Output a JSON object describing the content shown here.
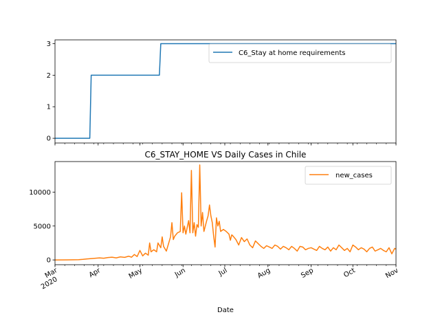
{
  "chart_data": [
    {
      "type": "line",
      "title": "",
      "xlabel": "",
      "ylabel": "",
      "x_range": [
        "2020-03-01",
        "2020-11-01"
      ],
      "ylim": [
        -0.15,
        3.12
      ],
      "yticks": [
        0,
        1,
        2,
        3
      ],
      "legend": "top-right",
      "series": [
        {
          "name": "C6_Stay at home requirements",
          "color": "#1f77b4",
          "step": true,
          "points": [
            [
              "2020-03-01",
              0
            ],
            [
              "2020-03-26",
              0
            ],
            [
              "2020-03-27",
              2
            ],
            [
              "2020-05-15",
              2
            ],
            [
              "2020-05-16",
              3
            ],
            [
              "2020-11-01",
              3
            ]
          ]
        }
      ]
    },
    {
      "type": "line",
      "title": "C6_STAY_HOME VS Daily Cases in Chile",
      "xlabel": "Date",
      "ylabel": "",
      "x_range": [
        "2020-03-01",
        "2020-11-01"
      ],
      "ylim": [
        -700,
        14500
      ],
      "yticks": [
        0,
        5000,
        10000
      ],
      "legend": "top-right",
      "xtick_labels": [
        {
          "date": "2020-03-01",
          "label": "Mar",
          "sub": "2020"
        },
        {
          "date": "2020-04-01",
          "label": "Apr"
        },
        {
          "date": "2020-05-01",
          "label": "May"
        },
        {
          "date": "2020-06-01",
          "label": "Jun"
        },
        {
          "date": "2020-07-01",
          "label": "Jul"
        },
        {
          "date": "2020-08-01",
          "label": "Aug"
        },
        {
          "date": "2020-09-01",
          "label": "Sep"
        },
        {
          "date": "2020-10-01",
          "label": "Oct"
        },
        {
          "date": "2020-11-01",
          "label": "Nov"
        }
      ],
      "series": [
        {
          "name": "new_cases",
          "color": "#ff7f0e",
          "points": [
            [
              "2020-03-01",
              0
            ],
            [
              "2020-03-10",
              10
            ],
            [
              "2020-03-18",
              40
            ],
            [
              "2020-03-21",
              80
            ],
            [
              "2020-03-24",
              150
            ],
            [
              "2020-03-27",
              200
            ],
            [
              "2020-03-30",
              250
            ],
            [
              "2020-04-02",
              300
            ],
            [
              "2020-04-05",
              250
            ],
            [
              "2020-04-08",
              350
            ],
            [
              "2020-04-11",
              400
            ],
            [
              "2020-04-14",
              300
            ],
            [
              "2020-04-17",
              450
            ],
            [
              "2020-04-20",
              380
            ],
            [
              "2020-04-23",
              550
            ],
            [
              "2020-04-25",
              400
            ],
            [
              "2020-04-27",
              800
            ],
            [
              "2020-04-29",
              500
            ],
            [
              "2020-05-01",
              1400
            ],
            [
              "2020-05-03",
              600
            ],
            [
              "2020-05-05",
              1000
            ],
            [
              "2020-05-07",
              700
            ],
            [
              "2020-05-08",
              2500
            ],
            [
              "2020-05-09",
              1200
            ],
            [
              "2020-05-11",
              1500
            ],
            [
              "2020-05-13",
              1200
            ],
            [
              "2020-05-14",
              2500
            ],
            [
              "2020-05-16",
              1800
            ],
            [
              "2020-05-17",
              3400
            ],
            [
              "2020-05-18",
              2000
            ],
            [
              "2020-05-20",
              1300
            ],
            [
              "2020-05-21",
              2000
            ],
            [
              "2020-05-23",
              3400
            ],
            [
              "2020-05-24",
              5500
            ],
            [
              "2020-05-25",
              3000
            ],
            [
              "2020-05-26",
              3500
            ],
            [
              "2020-05-28",
              4000
            ],
            [
              "2020-05-30",
              4200
            ],
            [
              "2020-05-31",
              9900
            ],
            [
              "2020-06-01",
              4000
            ],
            [
              "2020-06-02",
              5000
            ],
            [
              "2020-06-03",
              3800
            ],
            [
              "2020-06-05",
              5800
            ],
            [
              "2020-06-06",
              4000
            ],
            [
              "2020-06-07",
              13200
            ],
            [
              "2020-06-08",
              4000
            ],
            [
              "2020-06-09",
              5500
            ],
            [
              "2020-06-10",
              3500
            ],
            [
              "2020-06-11",
              5200
            ],
            [
              "2020-06-12",
              4800
            ],
            [
              "2020-06-13",
              14000
            ],
            [
              "2020-06-14",
              5000
            ],
            [
              "2020-06-15",
              7000
            ],
            [
              "2020-06-16",
              4200
            ],
            [
              "2020-06-18",
              5800
            ],
            [
              "2020-06-19",
              6500
            ],
            [
              "2020-06-20",
              8100
            ],
            [
              "2020-06-21",
              6500
            ],
            [
              "2020-06-22",
              5500
            ],
            [
              "2020-06-23",
              3500
            ],
            [
              "2020-06-24",
              1900
            ],
            [
              "2020-06-25",
              6200
            ],
            [
              "2020-06-26",
              5000
            ],
            [
              "2020-06-27",
              5700
            ],
            [
              "2020-06-28",
              4200
            ],
            [
              "2020-06-30",
              4500
            ],
            [
              "2020-07-02",
              4200
            ],
            [
              "2020-07-04",
              3800
            ],
            [
              "2020-07-05",
              2900
            ],
            [
              "2020-07-06",
              3700
            ],
            [
              "2020-07-07",
              3500
            ],
            [
              "2020-07-09",
              3000
            ],
            [
              "2020-07-11",
              2200
            ],
            [
              "2020-07-13",
              3300
            ],
            [
              "2020-07-15",
              2700
            ],
            [
              "2020-07-17",
              3100
            ],
            [
              "2020-07-19",
              2200
            ],
            [
              "2020-07-21",
              1800
            ],
            [
              "2020-07-23",
              2800
            ],
            [
              "2020-07-25",
              2400
            ],
            [
              "2020-07-27",
              2000
            ],
            [
              "2020-07-29",
              1700
            ],
            [
              "2020-07-31",
              2100
            ],
            [
              "2020-08-02",
              1900
            ],
            [
              "2020-08-04",
              1700
            ],
            [
              "2020-08-06",
              2200
            ],
            [
              "2020-08-08",
              2000
            ],
            [
              "2020-08-10",
              1600
            ],
            [
              "2020-08-12",
              2000
            ],
            [
              "2020-08-14",
              1800
            ],
            [
              "2020-08-16",
              1500
            ],
            [
              "2020-08-18",
              2000
            ],
            [
              "2020-08-20",
              1700
            ],
            [
              "2020-08-22",
              1300
            ],
            [
              "2020-08-24",
              2000
            ],
            [
              "2020-08-26",
              1900
            ],
            [
              "2020-08-28",
              1500
            ],
            [
              "2020-08-30",
              1700
            ],
            [
              "2020-09-01",
              1800
            ],
            [
              "2020-09-03",
              1600
            ],
            [
              "2020-09-05",
              1400
            ],
            [
              "2020-09-07",
              2000
            ],
            [
              "2020-09-09",
              1700
            ],
            [
              "2020-09-11",
              1500
            ],
            [
              "2020-09-13",
              1900
            ],
            [
              "2020-09-15",
              1300
            ],
            [
              "2020-09-17",
              1800
            ],
            [
              "2020-09-19",
              1500
            ],
            [
              "2020-09-21",
              2200
            ],
            [
              "2020-09-23",
              1800
            ],
            [
              "2020-09-25",
              1400
            ],
            [
              "2020-09-27",
              1700
            ],
            [
              "2020-09-29",
              1200
            ],
            [
              "2020-10-01",
              2200
            ],
            [
              "2020-10-03",
              1900
            ],
            [
              "2020-10-05",
              1500
            ],
            [
              "2020-10-07",
              1800
            ],
            [
              "2020-10-09",
              1600
            ],
            [
              "2020-10-11",
              1200
            ],
            [
              "2020-10-13",
              1700
            ],
            [
              "2020-10-15",
              1900
            ],
            [
              "2020-10-17",
              1300
            ],
            [
              "2020-10-19",
              1500
            ],
            [
              "2020-10-21",
              1700
            ],
            [
              "2020-10-23",
              1400
            ],
            [
              "2020-10-25",
              1200
            ],
            [
              "2020-10-27",
              1800
            ],
            [
              "2020-10-29",
              900
            ],
            [
              "2020-10-31",
              1700
            ],
            [
              "2020-11-01",
              1600
            ]
          ]
        }
      ]
    }
  ]
}
